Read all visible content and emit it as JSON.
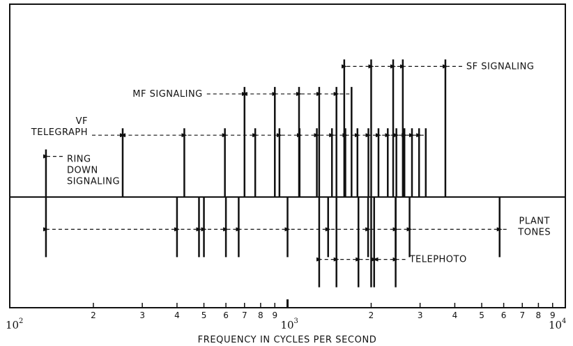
{
  "chart_data": {
    "type": "spectrum-line",
    "xlabel": "FREQUENCY IN CYCLES PER SECOND",
    "xscale": "log",
    "xlim": [
      100,
      10000
    ],
    "decade_labels": [
      {
        "x": 100,
        "base": "10",
        "exp": "2"
      },
      {
        "x": 1000,
        "base": "10",
        "exp": "3"
      },
      {
        "x": 10000,
        "base": "10",
        "exp": "4"
      }
    ],
    "minor_ticks": [
      {
        "x": 200,
        "label": "2"
      },
      {
        "x": 300,
        "label": "3"
      },
      {
        "x": 400,
        "label": "4"
      },
      {
        "x": 500,
        "label": "5"
      },
      {
        "x": 600,
        "label": "6"
      },
      {
        "x": 700,
        "label": "7"
      },
      {
        "x": 800,
        "label": "8"
      },
      {
        "x": 900,
        "label": "9"
      },
      {
        "x": 2000,
        "label": "2"
      },
      {
        "x": 3000,
        "label": "3"
      },
      {
        "x": 4000,
        "label": "4"
      },
      {
        "x": 5000,
        "label": "5"
      },
      {
        "x": 6000,
        "label": "6"
      },
      {
        "x": 7000,
        "label": "7"
      },
      {
        "x": 8000,
        "label": "8"
      },
      {
        "x": 9000,
        "label": "9"
      }
    ],
    "series": [
      {
        "name": "RING DOWN SIGNALING",
        "label": [
          "RING",
          "DOWN",
          "SIGNALING"
        ],
        "side": "up",
        "level": 0.45,
        "frequencies": [
          135
        ]
      },
      {
        "name": "VF TELEGRAPH",
        "label": [
          "VF",
          "TELEGRAPH"
        ],
        "side": "up",
        "level": 0.65,
        "frequencies": [
          255,
          425,
          595,
          765,
          935,
          1105,
          1275,
          1445,
          1615,
          1785,
          1955,
          2125,
          2295,
          2465,
          2635,
          2805,
          2975,
          3145
        ]
      },
      {
        "name": "MF SIGNALING",
        "label": [
          "MF SIGNALING"
        ],
        "side": "up",
        "level": 1.04,
        "frequencies": [
          700,
          900,
          1100,
          1300,
          1500,
          1700
        ]
      },
      {
        "name": "SF SIGNALING",
        "label": [
          "SF SIGNALING"
        ],
        "side": "up",
        "level": 1.3,
        "frequencies": [
          1600,
          2000,
          2400,
          2600,
          3700
        ]
      },
      {
        "name": "PLANT TONES",
        "label": [
          "PLANT",
          "TONES"
        ],
        "side": "down",
        "level": 0.48,
        "frequencies": [
          135,
          400,
          480,
          500,
          600,
          667,
          1000,
          1400,
          1950,
          2450,
          2750,
          5800
        ]
      },
      {
        "name": "TELEPHOTO",
        "label": [
          "TELEPHOTO"
        ],
        "side": "down",
        "level": 0.72,
        "frequencies": [
          1300,
          1500,
          1800,
          2000,
          2050,
          2450
        ]
      }
    ]
  }
}
